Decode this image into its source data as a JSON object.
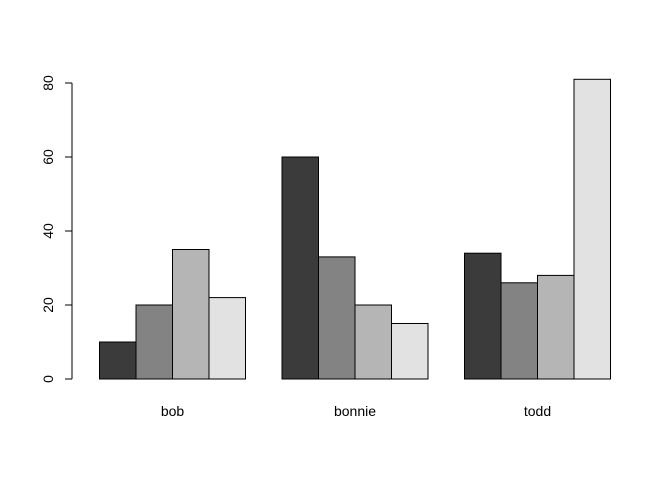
{
  "chart_data": {
    "type": "bar",
    "title": "",
    "xlabel": "",
    "ylabel": "",
    "categories": [
      "bob",
      "bonnie",
      "todd"
    ],
    "series": [
      {
        "values": [
          10,
          60,
          34
        ],
        "color": "#3b3b3b"
      },
      {
        "values": [
          20,
          33,
          26
        ],
        "color": "#838383"
      },
      {
        "values": [
          35,
          20,
          28
        ],
        "color": "#b5b5b5"
      },
      {
        "values": [
          22,
          15,
          81
        ],
        "color": "#e2e2e2"
      }
    ],
    "ylim": [
      0,
      80
    ],
    "yticks": [
      "0",
      "20",
      "40",
      "60",
      "80"
    ],
    "grid": false,
    "legend": "none"
  }
}
